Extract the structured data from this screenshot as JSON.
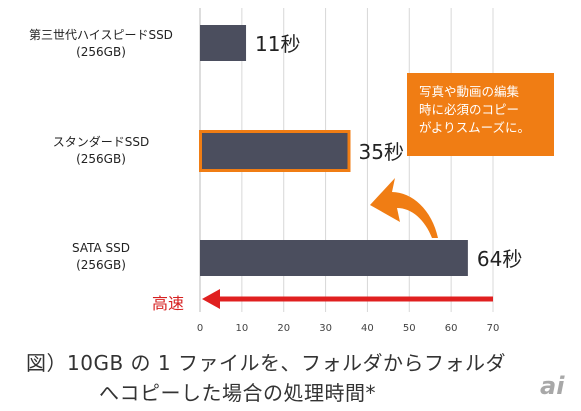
{
  "chart_data": {
    "type": "bar",
    "orientation": "horizontal",
    "categories": [
      [
        "第三世代ハイスピードSSD",
        "(256GB)"
      ],
      [
        "スタンダードSSD",
        "(256GB)"
      ],
      [
        "SATA SSD",
        "(256GB)"
      ]
    ],
    "values": [
      11,
      35,
      64
    ],
    "value_labels": [
      "11秒",
      "35秒",
      "64秒"
    ],
    "highlighted_index": 1,
    "xlim": [
      0,
      70
    ],
    "xticks": [
      0,
      10,
      20,
      30,
      40,
      50,
      60,
      70
    ],
    "grid": true,
    "colors": {
      "bar": "#4b4e5e",
      "highlight_border": "#f07d14",
      "callout": "#f07d14",
      "arrow": "#e02020",
      "grid": "#d8d8d8"
    }
  },
  "callout_text": [
    "写真や動画の編集",
    "時に必須のコピー",
    "がよりスムーズに。"
  ],
  "arrow_label": "高速",
  "caption": [
    "図）10GB の 1 ファイルを、フォルダからフォルダ",
    "へコピーした場合の処理時間*"
  ],
  "logo_text": "ai"
}
